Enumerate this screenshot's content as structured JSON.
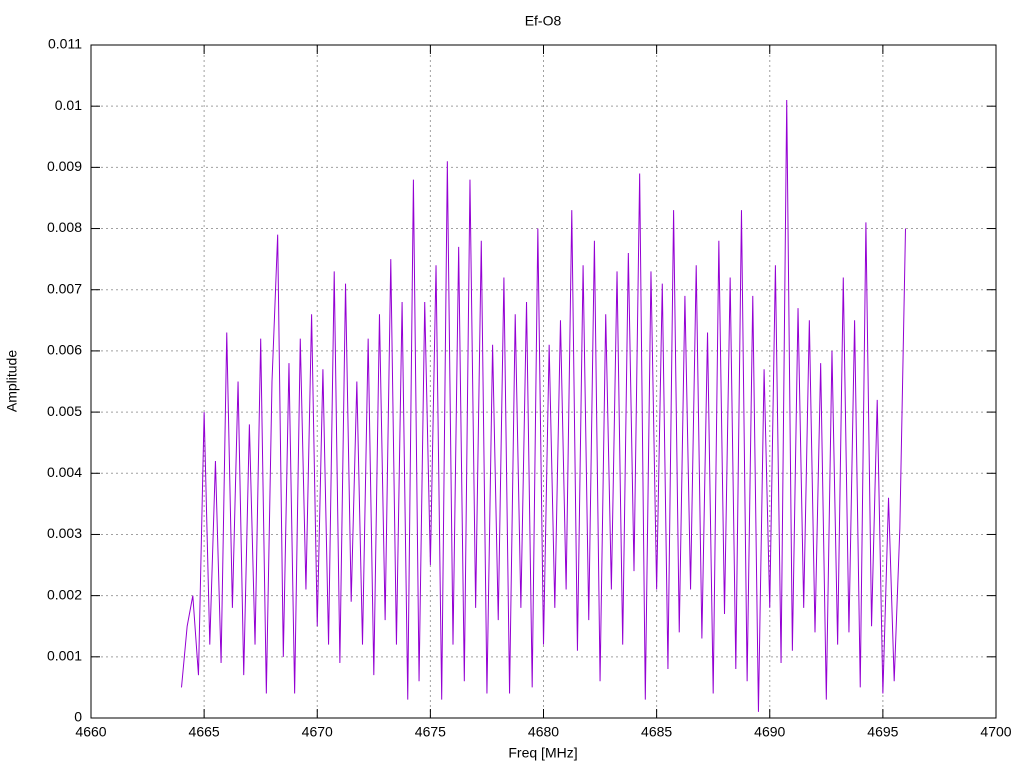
{
  "chart_data": {
    "type": "line",
    "title": "Ef-O8",
    "x_label": "Freq [MHz]",
    "y_label": "Amplitude",
    "color": "#9400d3",
    "grid": true,
    "xlim": [
      4660,
      4700
    ],
    "xticks": [
      4660,
      4665,
      4670,
      4675,
      4680,
      4685,
      4690,
      4695,
      4700
    ],
    "ylim": [
      0,
      0.011
    ],
    "yticks": [
      0,
      0.001,
      0.002,
      0.003,
      0.004,
      0.005,
      0.006,
      0.007,
      0.008,
      0.009,
      0.01,
      0.011
    ],
    "x": [
      4664,
      4664.25,
      4664.5,
      4664.75,
      4665,
      4665.25,
      4665.5,
      4665.75,
      4666,
      4666.25,
      4666.5,
      4666.75,
      4667,
      4667.25,
      4667.5,
      4667.75,
      4668,
      4668.25,
      4668.5,
      4668.75,
      4669,
      4669.25,
      4669.5,
      4669.75,
      4670,
      4670.25,
      4670.5,
      4670.75,
      4671,
      4671.25,
      4671.5,
      4671.75,
      4672,
      4672.25,
      4672.5,
      4672.75,
      4673,
      4673.25,
      4673.5,
      4673.75,
      4674,
      4674.25,
      4674.5,
      4674.75,
      4675,
      4675.25,
      4675.5,
      4675.75,
      4676,
      4676.25,
      4676.5,
      4676.75,
      4677,
      4677.25,
      4677.5,
      4677.75,
      4678,
      4678.25,
      4678.5,
      4678.75,
      4679,
      4679.25,
      4679.5,
      4679.75,
      4680,
      4680.25,
      4680.5,
      4680.75,
      4681,
      4681.25,
      4681.5,
      4681.75,
      4682,
      4682.25,
      4682.5,
      4682.75,
      4683,
      4683.25,
      4683.5,
      4683.75,
      4684,
      4684.25,
      4684.5,
      4684.75,
      4685,
      4685.25,
      4685.5,
      4685.75,
      4686,
      4686.25,
      4686.5,
      4686.75,
      4687,
      4687.25,
      4687.5,
      4687.75,
      4688,
      4688.25,
      4688.5,
      4688.75,
      4689,
      4689.25,
      4689.5,
      4689.75,
      4690,
      4690.25,
      4690.5,
      4690.75,
      4691,
      4691.25,
      4691.5,
      4691.75,
      4692,
      4692.25,
      4692.5,
      4692.75,
      4693,
      4693.25,
      4693.5,
      4693.75,
      4694,
      4694.25,
      4694.5,
      4694.75,
      4695,
      4695.25,
      4695.5,
      4695.75,
      4696
    ],
    "values": [
      0.0005,
      0.0015,
      0.002,
      0.0007,
      0.005,
      0.0012,
      0.0042,
      0.0009,
      0.0063,
      0.0018,
      0.0055,
      0.0007,
      0.0048,
      0.0012,
      0.0062,
      0.0004,
      0.0055,
      0.0079,
      0.001,
      0.0058,
      0.0004,
      0.0062,
      0.0021,
      0.0066,
      0.0015,
      0.0057,
      0.0012,
      0.0073,
      0.0009,
      0.0071,
      0.0019,
      0.0055,
      0.0012,
      0.0062,
      0.0007,
      0.0066,
      0.0016,
      0.0075,
      0.0012,
      0.0068,
      0.0003,
      0.0088,
      0.0006,
      0.0068,
      0.0025,
      0.0074,
      0.0003,
      0.0091,
      0.0012,
      0.0077,
      0.0006,
      0.0088,
      0.0018,
      0.0078,
      0.0004,
      0.0061,
      0.0016,
      0.0072,
      0.0004,
      0.0066,
      0.0018,
      0.0068,
      0.0005,
      0.008,
      0.0012,
      0.0061,
      0.0018,
      0.0065,
      0.0021,
      0.0083,
      0.0011,
      0.0074,
      0.0016,
      0.0078,
      0.0006,
      0.0066,
      0.0021,
      0.0073,
      0.0012,
      0.0076,
      0.0024,
      0.0089,
      0.0003,
      0.0073,
      0.0021,
      0.0071,
      0.0008,
      0.0083,
      0.0014,
      0.0069,
      0.0021,
      0.0074,
      0.0013,
      0.0063,
      0.0004,
      0.0078,
      0.0017,
      0.0072,
      0.0008,
      0.0083,
      0.0006,
      0.0069,
      0.0001,
      0.0057,
      0.0018,
      0.0074,
      0.0009,
      0.0101,
      0.0011,
      0.0067,
      0.0018,
      0.0065,
      0.0014,
      0.0058,
      0.0003,
      0.006,
      0.0012,
      0.0072,
      0.0014,
      0.0065,
      0.0005,
      0.0081,
      0.0015,
      0.0052,
      0.0004,
      0.0036,
      0.0006,
      0.0031,
      0.008
    ]
  }
}
